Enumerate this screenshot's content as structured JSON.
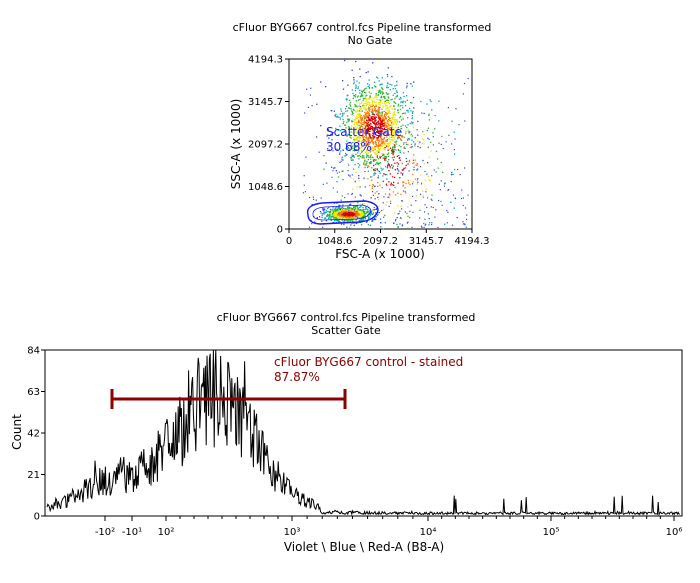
{
  "chart_data": [
    {
      "type": "scatter",
      "title": "cFluor BYG667 control.fcs Pipeline transformed",
      "subtitle": "No Gate",
      "xlabel": "FSC-A (x 1000)",
      "ylabel": "SSC-A (x 1000)",
      "xlim": [
        0,
        4194.3
      ],
      "ylim": [
        0,
        4194.3
      ],
      "x_ticks": [
        "0",
        "1048.6",
        "2097.2",
        "3145.7",
        "4194.3"
      ],
      "y_ticks": [
        "0",
        "1048.6",
        "2097.2",
        "3145.7",
        "4194.3"
      ],
      "density_clusters": [
        {
          "x": 1950,
          "y": 2550,
          "sx": 380,
          "sy": 520,
          "weight": 0.55
        },
        {
          "x": 1350,
          "y": 380,
          "sx": 260,
          "sy": 90,
          "weight": 0.3
        },
        {
          "x": 2300,
          "y": 1600,
          "sx": 700,
          "sy": 900,
          "weight": 0.15
        }
      ],
      "gate": {
        "name": "Scatter Gate",
        "percent": "30.68%",
        "color": "#1a1aff"
      }
    },
    {
      "type": "line",
      "title": "cFluor BYG667 control.fcs Pipeline transformed",
      "subtitle": "Scatter Gate",
      "xlabel": "Violet \\ Blue \\ Red-A (B8-A)",
      "ylabel": "Count",
      "ylim": [
        0,
        84
      ],
      "y_ticks": [
        "0",
        "21",
        "42",
        "63",
        "84"
      ],
      "x_ticks": [
        "-10²",
        "-10¹",
        "10²",
        "10³",
        "10⁴",
        "10⁵",
        "10⁶"
      ],
      "x_tick_values": [
        -100,
        -10,
        100,
        1000,
        10000,
        100000,
        1000000
      ],
      "peak_count": 84,
      "gate": {
        "name": "cFluor BYG667 control - stained",
        "percent": "87.87%",
        "x_range": [
          -120,
          420
        ],
        "color": "#8b0000"
      }
    }
  ]
}
